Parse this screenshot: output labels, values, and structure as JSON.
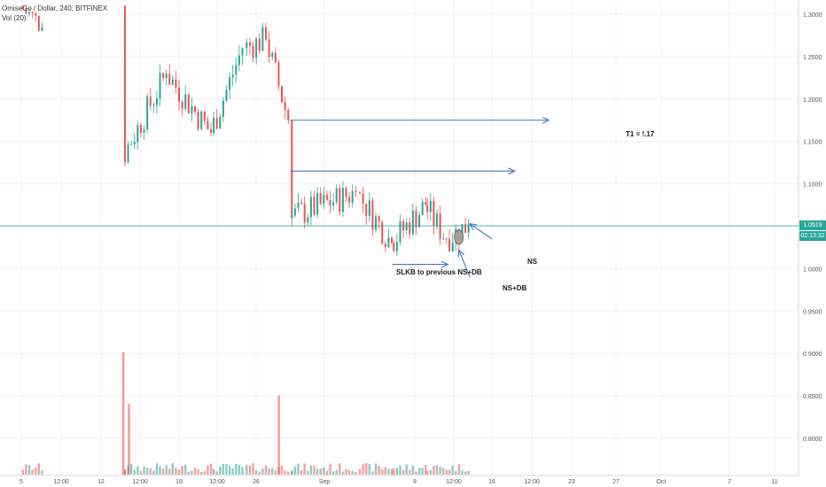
{
  "header": {
    "symbol_line": "OmiseGo / Dollar, 240, BITFINEX",
    "volume_line": "Vol (20)"
  },
  "annotations": {
    "t1": "T1 = !.17",
    "slkb": "SLKB to previous NS+DB",
    "ns": "NS",
    "ns_db": "NS+DB"
  },
  "price_tags": {
    "last_price": "1.0519",
    "countdown": "02:13:32"
  },
  "colors": {
    "up": "#26a69a",
    "down": "#ef5350",
    "arrow": "#4a72c0",
    "price_line": "#26a69a",
    "grid": "#eef1f5",
    "marker_fill": "#a7a09b",
    "marker_stroke": "#6b5a4e"
  },
  "chart_data": {
    "type": "candlestick",
    "y_axis": {
      "ticks": [
        "1.3000",
        "1.2500",
        "1.2000",
        "1.1500",
        "1.1000",
        "1.0500",
        "1.0000",
        "0.9500",
        "0.9000",
        "0.8500",
        "0.8000"
      ],
      "range": [
        0.76,
        1.31
      ]
    },
    "x_axis": {
      "ticks": [
        "5",
        "12:00",
        "12",
        "12:00",
        "19",
        "12:00",
        "26",
        "Sep",
        "9",
        "12:00",
        "16",
        "12:00",
        "23",
        "27",
        "Oct",
        "7",
        "11"
      ]
    },
    "last_price": 1.0519,
    "grid": true,
    "series": [
      {
        "segment": "Aug 5-7",
        "x_range": [
          "Aug 5",
          "Aug 7"
        ],
        "open": 1.31,
        "close": 1.285,
        "low": 1.28,
        "high": 1.31
      },
      {
        "segment": "Aug 14 drop",
        "x_range": [
          "Aug 14",
          "Aug 14"
        ],
        "open": 1.31,
        "close": 1.13,
        "low": 1.1,
        "high": 1.31
      },
      {
        "segment": "Aug 14-18",
        "x_range": [
          "Aug 14",
          "Aug 18"
        ],
        "open": 1.13,
        "close": 1.23,
        "low": 1.1,
        "high": 1.25
      },
      {
        "segment": "Aug 18-22",
        "x_range": [
          "Aug 18",
          "Aug 22"
        ],
        "open": 1.23,
        "close": 1.16,
        "low": 1.13,
        "high": 1.27
      },
      {
        "segment": "Aug 22-25",
        "x_range": [
          "Aug 22",
          "Aug 25"
        ],
        "open": 1.16,
        "close": 1.26,
        "low": 1.14,
        "high": 1.3
      },
      {
        "segment": "Aug 25-27",
        "x_range": [
          "Aug 25",
          "Aug 27"
        ],
        "open": 1.26,
        "close": 1.27,
        "low": 1.22,
        "high": 1.29
      },
      {
        "segment": "Aug 27-29",
        "x_range": [
          "Aug 27",
          "Aug 29"
        ],
        "open": 1.27,
        "close": 1.175,
        "low": 1.16,
        "high": 1.28
      },
      {
        "segment": "Aug 29 drop",
        "x_range": [
          "Aug 29",
          "Aug 29"
        ],
        "open": 1.175,
        "close": 1.06,
        "low": 1.025,
        "high": 1.175
      },
      {
        "segment": "Aug 29 - Sep 4",
        "x_range": [
          "Aug 29",
          "Sep 4"
        ],
        "open": 1.06,
        "close": 1.09,
        "low": 1.03,
        "high": 1.115
      },
      {
        "segment": "Sep 4-7",
        "x_range": [
          "Sep 4",
          "Sep 7"
        ],
        "open": 1.09,
        "close": 1.03,
        "low": 1.0,
        "high": 1.1
      },
      {
        "segment": "Sep 7-10",
        "x_range": [
          "Sep 7",
          "Sep 10"
        ],
        "open": 1.03,
        "close": 1.075,
        "low": 1.0,
        "high": 1.095
      },
      {
        "segment": "Sep 10-12",
        "x_range": [
          "Sep 10",
          "Sep 12"
        ],
        "open": 1.075,
        "close": 1.035,
        "low": 1.02,
        "high": 1.09
      },
      {
        "segment": "Sep 12-14",
        "x_range": [
          "Sep 12",
          "Sep 14"
        ],
        "open": 1.035,
        "close": 1.052,
        "low": 1.02,
        "high": 1.06
      }
    ],
    "volume": {
      "name": "Vol (20)",
      "spikes": [
        {
          "at": "Aug 14",
          "relative": 1.0
        },
        {
          "at": "Aug 14 12:00",
          "relative": 0.58
        },
        {
          "at": "Aug 28",
          "relative": 0.65
        }
      ]
    },
    "drawings": [
      {
        "kind": "arrow",
        "direction": "right",
        "price": 1.175,
        "from": "Aug 29",
        "to": "Sep 21"
      },
      {
        "kind": "arrow",
        "direction": "right",
        "price": 1.115,
        "from": "Aug 29",
        "to": "Sep 18"
      },
      {
        "kind": "arrow",
        "direction": "right",
        "price": 1.005,
        "from": "Sep 7",
        "to": "Sep 12"
      },
      {
        "kind": "arrow",
        "direction": "up-left",
        "from": [
          1.035,
          "Sep 16"
        ],
        "to": [
          1.053,
          "Sep 14"
        ]
      },
      {
        "kind": "arrow",
        "direction": "up-left",
        "from": [
          0.99,
          "Sep 14"
        ],
        "to": [
          1.022,
          "Sep 13"
        ]
      },
      {
        "kind": "ellipse",
        "at": [
          1.037,
          "Sep 13"
        ]
      }
    ]
  }
}
